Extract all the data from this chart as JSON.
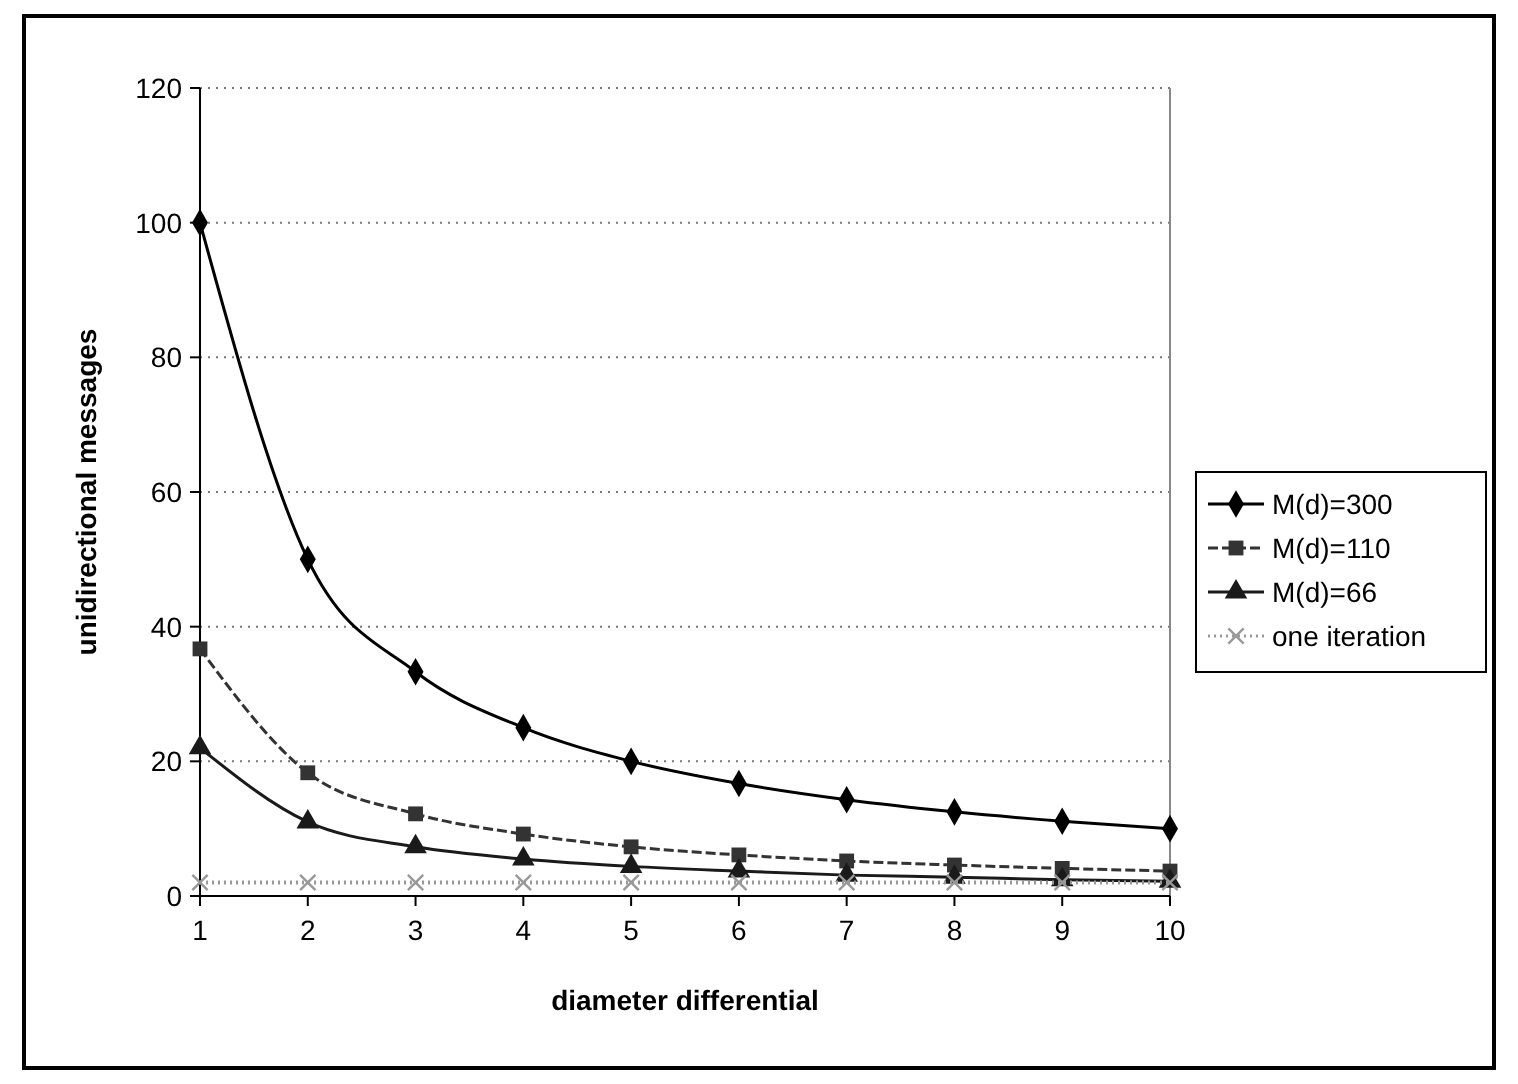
{
  "chart_data": {
    "type": "line",
    "xlabel": "diameter differential",
    "ylabel": "unidirectional messages",
    "x": [
      1,
      2,
      3,
      4,
      5,
      6,
      7,
      8,
      9,
      10
    ],
    "xlim": [
      1,
      10
    ],
    "xticks": [
      1,
      2,
      3,
      4,
      5,
      6,
      7,
      8,
      9,
      10
    ],
    "ylim": [
      0,
      120
    ],
    "yticks": [
      0,
      20,
      40,
      60,
      80,
      100,
      120
    ],
    "grid": "y",
    "legend": "right",
    "series": [
      {
        "name": "M(d)=300",
        "color": "#000000",
        "marker": "diamond",
        "line_style": "solid",
        "values": [
          100,
          50,
          33.3,
          25,
          20,
          16.7,
          14.3,
          12.5,
          11.1,
          10
        ]
      },
      {
        "name": "M(d)=110",
        "color": "#333333",
        "marker": "square",
        "line_style": "dashed",
        "values": [
          36.7,
          18.3,
          12.2,
          9.2,
          7.3,
          6.1,
          5.2,
          4.6,
          4.1,
          3.7
        ]
      },
      {
        "name": "M(d)=66",
        "color": "#1a1a1a",
        "marker": "triangle",
        "line_style": "solid",
        "values": [
          22,
          11,
          7.3,
          5.5,
          4.4,
          3.7,
          3.1,
          2.8,
          2.4,
          2.2
        ]
      },
      {
        "name": "one iteration",
        "color": "#999999",
        "marker": "cross",
        "line_style": "dotted",
        "values": [
          2,
          2,
          2,
          2,
          2,
          2,
          2,
          2,
          2,
          2
        ]
      }
    ]
  }
}
